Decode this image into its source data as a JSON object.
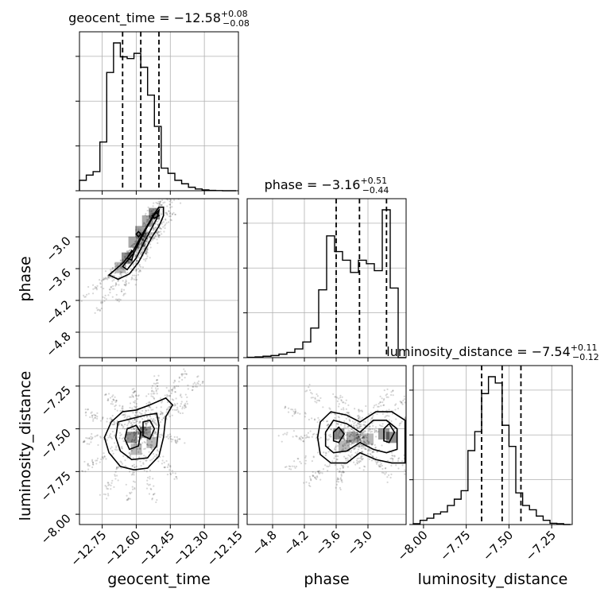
{
  "chart_data": {
    "type": "corner",
    "parameters": [
      "geocent_time",
      "phase",
      "luminosity_distance"
    ],
    "titles": [
      {
        "param": "geocent_time",
        "prefix": "geocent_time = ",
        "median": "−12.58",
        "plus": "+0.08",
        "minus": "−0.08"
      },
      {
        "param": "phase",
        "prefix": "phase = ",
        "median": "−3.16",
        "plus": "+0.51",
        "minus": "−0.44"
      },
      {
        "param": "luminosity_distance",
        "prefix": "luminosity_distance = ",
        "median": "−7.54",
        "plus": "+0.11",
        "minus": "−0.12"
      }
    ],
    "axes": {
      "geocent_time": {
        "range": [
          -12.85,
          -12.15
        ],
        "ticks": [
          -12.75,
          -12.6,
          -12.45,
          -12.3,
          -12.15
        ],
        "tick_labels": [
          "−12.75",
          "−12.60",
          "−12.45",
          "−12.30",
          "−12.15"
        ]
      },
      "phase": {
        "range": [
          -5.28,
          -2.28
        ],
        "ticks": [
          -4.8,
          -4.2,
          -3.6,
          -3.0
        ],
        "tick_labels": [
          "−4.8",
          "−4.2",
          "−3.6",
          "−3.0"
        ]
      },
      "luminosity_distance": {
        "range": [
          -8.06,
          -7.13
        ],
        "ticks": [
          -8.0,
          -7.75,
          -7.5,
          -7.25
        ],
        "tick_labels": [
          "−8.00",
          "−7.75",
          "−7.50",
          "−7.25"
        ]
      }
    },
    "marginals": [
      {
        "param": "geocent_time",
        "bin_edges": [
          -12.85,
          -12.82,
          -12.79,
          -12.76,
          -12.73,
          -12.7,
          -12.67,
          -12.64,
          -12.61,
          -12.58,
          -12.55,
          -12.52,
          -12.49,
          -12.46,
          -12.43,
          -12.4,
          -12.37,
          -12.34,
          -12.31,
          -12.28,
          -12.25,
          -12.22,
          -12.19,
          -12.16
        ],
        "counts": [
          0.06,
          0.09,
          0.11,
          0.28,
          0.68,
          0.85,
          0.77,
          0.76,
          0.79,
          0.71,
          0.55,
          0.37,
          0.13,
          0.1,
          0.06,
          0.04,
          0.02,
          0.01,
          0.005,
          0.002,
          0.001,
          0.0,
          0.0
        ],
        "quantiles": [
          -12.66,
          -12.58,
          -12.5
        ]
      },
      {
        "param": "phase",
        "bin_edges": [
          -5.28,
          -5.13,
          -4.98,
          -4.83,
          -4.68,
          -4.53,
          -4.38,
          -4.23,
          -4.08,
          -3.93,
          -3.78,
          -3.63,
          -3.48,
          -3.33,
          -3.18,
          -3.03,
          -2.88,
          -2.73,
          -2.58,
          -2.43,
          -2.28
        ],
        "counts": [
          0.002,
          0.004,
          0.008,
          0.012,
          0.02,
          0.03,
          0.05,
          0.09,
          0.17,
          0.39,
          0.7,
          0.61,
          0.56,
          0.49,
          0.56,
          0.54,
          0.5,
          0.85,
          0.4,
          0.0
        ],
        "quantiles": [
          -3.6,
          -3.16,
          -2.65
        ]
      },
      {
        "param": "luminosity_distance",
        "bin_edges": [
          -8.06,
          -8.02,
          -7.98,
          -7.94,
          -7.9,
          -7.86,
          -7.82,
          -7.78,
          -7.74,
          -7.7,
          -7.66,
          -7.62,
          -7.58,
          -7.54,
          -7.5,
          -7.46,
          -7.42,
          -7.38,
          -7.34,
          -7.3,
          -7.26,
          -7.22,
          -7.18,
          -7.14
        ],
        "counts": [
          0.004,
          0.02,
          0.03,
          0.05,
          0.06,
          0.09,
          0.12,
          0.16,
          0.35,
          0.44,
          0.62,
          0.7,
          0.67,
          0.47,
          0.37,
          0.15,
          0.09,
          0.07,
          0.04,
          0.02,
          0.006,
          0.004,
          0.0
        ],
        "quantiles": [
          -7.66,
          -7.54,
          -7.43
        ]
      }
    ],
    "pair_plots": [
      {
        "x": "geocent_time",
        "y": "phase",
        "contours": [
          [
            [
              -12.72,
              -3.72
            ],
            [
              -12.66,
              -3.5
            ],
            [
              -12.61,
              -3.24
            ],
            [
              -12.58,
              -3.0
            ],
            [
              -12.55,
              -2.78
            ],
            [
              -12.52,
              -2.56
            ],
            [
              -12.5,
              -2.44
            ],
            [
              -12.48,
              -2.44
            ],
            [
              -12.48,
              -2.6
            ],
            [
              -12.5,
              -2.8
            ],
            [
              -12.53,
              -3.0
            ],
            [
              -12.56,
              -3.24
            ],
            [
              -12.59,
              -3.48
            ],
            [
              -12.63,
              -3.7
            ],
            [
              -12.68,
              -3.8
            ]
          ],
          [
            [
              -12.66,
              -3.56
            ],
            [
              -12.61,
              -3.3
            ],
            [
              -12.58,
              -3.04
            ],
            [
              -12.55,
              -2.8
            ],
            [
              -12.52,
              -2.58
            ],
            [
              -12.5,
              -2.5
            ],
            [
              -12.51,
              -2.66
            ],
            [
              -12.54,
              -2.9
            ],
            [
              -12.57,
              -3.14
            ],
            [
              -12.6,
              -3.4
            ],
            [
              -12.64,
              -3.62
            ]
          ],
          [
            [
              -12.64,
              -3.4
            ],
            [
              -12.62,
              -3.26
            ],
            [
              -12.61,
              -3.3
            ],
            [
              -12.62,
              -3.44
            ]
          ],
          [
            [
              -12.6,
              -2.95
            ],
            [
              -12.59,
              -2.9
            ],
            [
              -12.58,
              -2.95
            ],
            [
              -12.59,
              -3.0
            ]
          ],
          [
            [
              -12.53,
              -2.6
            ],
            [
              -12.51,
              -2.55
            ],
            [
              -12.5,
              -2.6
            ],
            [
              -12.52,
              -2.65
            ]
          ]
        ],
        "density_cells": [
          [
            -12.64,
            -3.4,
            0.8
          ],
          [
            -12.61,
            -3.1,
            0.6
          ],
          [
            -12.58,
            -2.9,
            0.7
          ],
          [
            -12.55,
            -2.7,
            0.6
          ],
          [
            -12.52,
            -2.56,
            0.8
          ],
          [
            -12.67,
            -3.58,
            0.5
          ]
        ]
      },
      {
        "x": "geocent_time",
        "y": "luminosity_distance",
        "contours": [
          [
            [
              -12.71,
              -7.46
            ],
            [
              -12.66,
              -7.4
            ],
            [
              -12.6,
              -7.39
            ],
            [
              -12.54,
              -7.36
            ],
            [
              -12.47,
              -7.32
            ],
            [
              -12.44,
              -7.36
            ],
            [
              -12.47,
              -7.43
            ],
            [
              -12.48,
              -7.55
            ],
            [
              -12.5,
              -7.66
            ],
            [
              -12.55,
              -7.73
            ],
            [
              -12.61,
              -7.74
            ],
            [
              -12.67,
              -7.72
            ],
            [
              -12.72,
              -7.64
            ],
            [
              -12.74,
              -7.55
            ]
          ],
          [
            [
              -12.68,
              -7.46
            ],
            [
              -12.62,
              -7.44
            ],
            [
              -12.56,
              -7.42
            ],
            [
              -12.51,
              -7.41
            ],
            [
              -12.5,
              -7.48
            ],
            [
              -12.51,
              -7.6
            ],
            [
              -12.55,
              -7.67
            ],
            [
              -12.62,
              -7.68
            ],
            [
              -12.67,
              -7.63
            ],
            [
              -12.69,
              -7.55
            ]
          ],
          [
            [
              -12.64,
              -7.5
            ],
            [
              -12.6,
              -7.48
            ],
            [
              -12.58,
              -7.52
            ],
            [
              -12.59,
              -7.6
            ],
            [
              -12.63,
              -7.62
            ],
            [
              -12.65,
              -7.56
            ]
          ],
          [
            [
              -12.57,
              -7.46
            ],
            [
              -12.54,
              -7.45
            ],
            [
              -12.52,
              -7.5
            ],
            [
              -12.54,
              -7.56
            ],
            [
              -12.57,
              -7.54
            ]
          ]
        ],
        "density_cells": [
          [
            -12.62,
            -7.55,
            0.8
          ],
          [
            -12.56,
            -7.52,
            0.7
          ],
          [
            -12.6,
            -7.62,
            0.5
          ],
          [
            -12.53,
            -7.58,
            0.5
          ]
        ]
      },
      {
        "x": "phase",
        "y": "luminosity_distance",
        "contours": [
          [
            [
              -3.95,
              -7.55
            ],
            [
              -3.9,
              -7.46
            ],
            [
              -3.7,
              -7.4
            ],
            [
              -3.4,
              -7.42
            ],
            [
              -3.15,
              -7.46
            ],
            [
              -2.85,
              -7.4
            ],
            [
              -2.55,
              -7.4
            ],
            [
              -2.3,
              -7.45
            ],
            [
              -2.3,
              -7.7
            ],
            [
              -2.55,
              -7.7
            ],
            [
              -2.85,
              -7.68
            ],
            [
              -3.15,
              -7.64
            ],
            [
              -3.4,
              -7.7
            ],
            [
              -3.7,
              -7.7
            ],
            [
              -3.9,
              -7.65
            ]
          ],
          [
            [
              -3.8,
              -7.52
            ],
            [
              -3.65,
              -7.45
            ],
            [
              -3.4,
              -7.47
            ],
            [
              -3.15,
              -7.52
            ],
            [
              -2.9,
              -7.45
            ],
            [
              -2.65,
              -7.45
            ],
            [
              -2.45,
              -7.5
            ],
            [
              -2.45,
              -7.62
            ],
            [
              -2.65,
              -7.64
            ],
            [
              -2.9,
              -7.62
            ],
            [
              -3.15,
              -7.58
            ],
            [
              -3.4,
              -7.63
            ],
            [
              -3.65,
              -7.64
            ],
            [
              -3.8,
              -7.6
            ]
          ],
          [
            [
              -3.65,
              -7.52
            ],
            [
              -3.55,
              -7.49
            ],
            [
              -3.45,
              -7.53
            ],
            [
              -3.55,
              -7.58
            ],
            [
              -3.65,
              -7.57
            ]
          ],
          [
            [
              -2.7,
              -7.5
            ],
            [
              -2.6,
              -7.47
            ],
            [
              -2.5,
              -7.52
            ],
            [
              -2.6,
              -7.58
            ],
            [
              -2.7,
              -7.57
            ]
          ]
        ],
        "density_cells": [
          [
            -3.55,
            -7.53,
            0.8
          ],
          [
            -3.3,
            -7.55,
            0.6
          ],
          [
            -3.0,
            -7.56,
            0.5
          ],
          [
            -2.7,
            -7.53,
            0.7
          ],
          [
            -2.55,
            -7.55,
            0.8
          ],
          [
            -3.45,
            -7.6,
            0.5
          ]
        ]
      }
    ],
    "xlabels": [
      "geocent_time",
      "phase",
      "luminosity_distance"
    ],
    "ylabels": [
      "",
      "phase",
      "luminosity_distance"
    ],
    "grid": true
  }
}
